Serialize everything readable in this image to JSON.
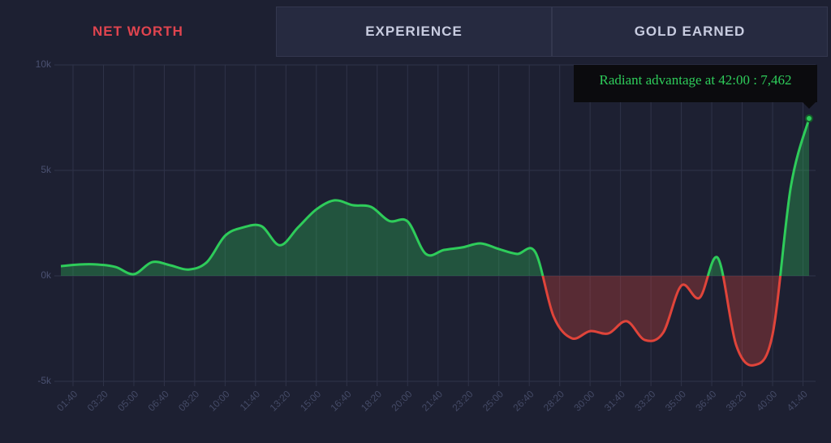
{
  "tabs": [
    "NET WORTH",
    "EXPERIENCE",
    "GOLD EARNED"
  ],
  "chart_data": {
    "type": "line",
    "tooltip": "Radiant advantage at 42:00 : 7,462",
    "x": [
      60,
      120,
      180,
      240,
      300,
      360,
      420,
      480,
      540,
      600,
      660,
      720,
      780,
      840,
      900,
      960,
      1020,
      1080,
      1140,
      1200,
      1260,
      1320,
      1380,
      1440,
      1500,
      1560,
      1620,
      1680,
      1740,
      1800,
      1860,
      1920,
      1980,
      2040,
      2100,
      2160,
      2220,
      2280,
      2340,
      2400,
      2460,
      2520
    ],
    "series": [
      {
        "name": "Radiant advantage",
        "color": "#2ecc5a",
        "negative_color": "#e0443a",
        "values": [
          460,
          540,
          540,
          420,
          80,
          650,
          500,
          300,
          650,
          1900,
          2300,
          2350,
          1450,
          2300,
          3150,
          3580,
          3350,
          3270,
          2600,
          2580,
          1040,
          1230,
          1350,
          1540,
          1270,
          1040,
          1120,
          -1920,
          -2960,
          -2620,
          -2730,
          -2150,
          -3040,
          -2700,
          -460,
          -1040,
          850,
          -3270,
          -4230,
          -2770,
          4230,
          7462
        ]
      }
    ],
    "xlim": [
      60,
      2520
    ],
    "xticks": [
      {
        "value": 100,
        "label": "01:40"
      },
      {
        "value": 200,
        "label": "03:20"
      },
      {
        "value": 300,
        "label": "05:00"
      },
      {
        "value": 400,
        "label": "06:40"
      },
      {
        "value": 500,
        "label": "08:20"
      },
      {
        "value": 600,
        "label": "10:00"
      },
      {
        "value": 700,
        "label": "11:40"
      },
      {
        "value": 800,
        "label": "13:20"
      },
      {
        "value": 900,
        "label": "15:00"
      },
      {
        "value": 1000,
        "label": "16:40"
      },
      {
        "value": 1100,
        "label": "18:20"
      },
      {
        "value": 1200,
        "label": "20:00"
      },
      {
        "value": 1300,
        "label": "21:40"
      },
      {
        "value": 1400,
        "label": "23:20"
      },
      {
        "value": 1500,
        "label": "25:00"
      },
      {
        "value": 1600,
        "label": "26:40"
      },
      {
        "value": 1700,
        "label": "28:20"
      },
      {
        "value": 1800,
        "label": "30:00"
      },
      {
        "value": 1900,
        "label": "31:40"
      },
      {
        "value": 2000,
        "label": "33:20"
      },
      {
        "value": 2100,
        "label": "35:00"
      },
      {
        "value": 2200,
        "label": "36:40"
      },
      {
        "value": 2300,
        "label": "38:20"
      },
      {
        "value": 2400,
        "label": "40:00"
      },
      {
        "value": 2500,
        "label": "41:40"
      }
    ],
    "ylim": [
      -5000,
      10000
    ],
    "yticks": [
      {
        "value": 10000,
        "label": "10k"
      },
      {
        "value": 5000,
        "label": "5k"
      },
      {
        "value": 0,
        "label": "0k"
      },
      {
        "value": -5000,
        "label": "-5k"
      }
    ],
    "grid": true
  }
}
